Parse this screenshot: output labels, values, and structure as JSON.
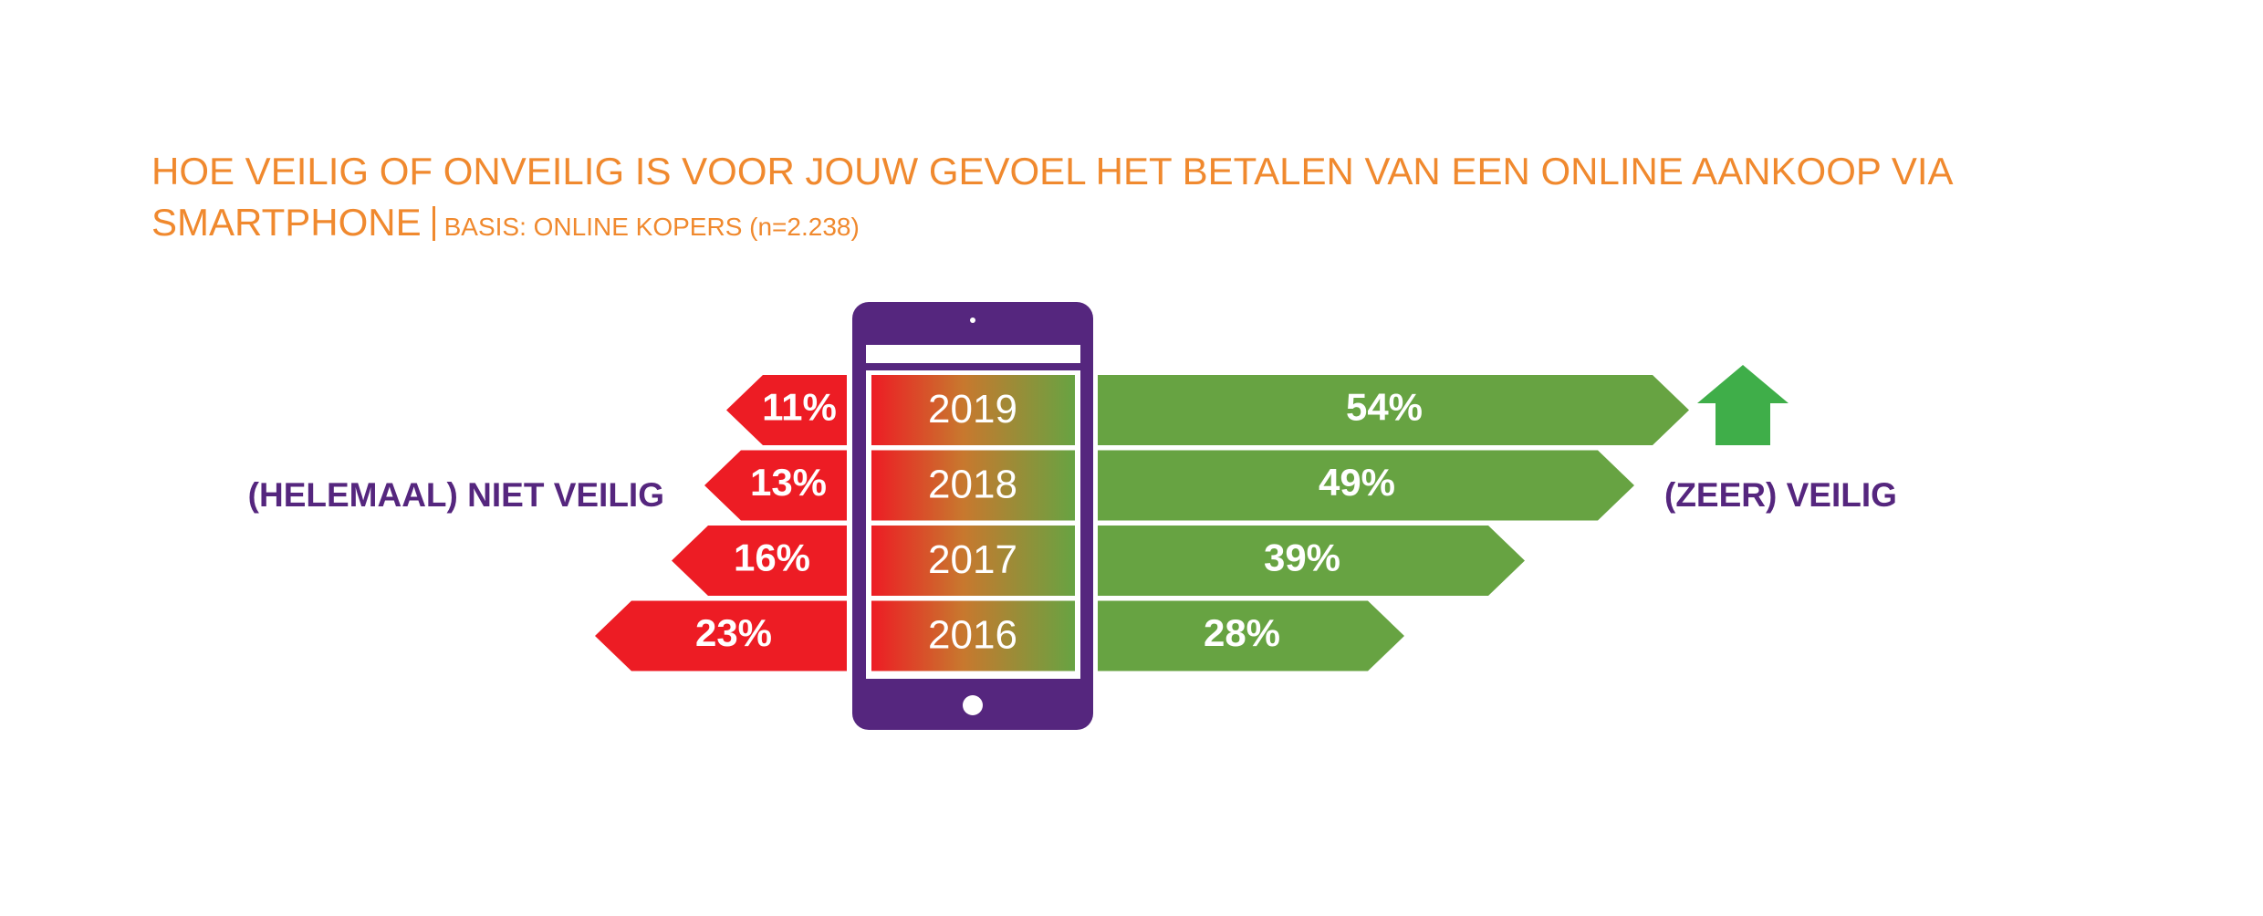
{
  "chart_data": {
    "type": "bar",
    "title": "HOE VEILIG OF ONVEILIG IS VOOR JOUW GEVOEL HET BETALEN VAN EEN ONLINE AANKOOP VIA SMARTPHONE",
    "subtitle": "BASIS: ONLINE KOPERS (n=2.238)",
    "categories": [
      "2019",
      "2018",
      "2017",
      "2016"
    ],
    "series": [
      {
        "name": "(HELEMAAL) NIET VEILIG",
        "color": "#ed1c24",
        "values": [
          11,
          13,
          16,
          23
        ],
        "value_labels": [
          "11%",
          "13%",
          "16%",
          "23%"
        ]
      },
      {
        "name": "(ZEER) VEILIG",
        "color": "#67a342",
        "values": [
          54,
          49,
          39,
          28
        ],
        "value_labels": [
          "54%",
          "49%",
          "39%",
          "28%"
        ]
      }
    ]
  }
}
